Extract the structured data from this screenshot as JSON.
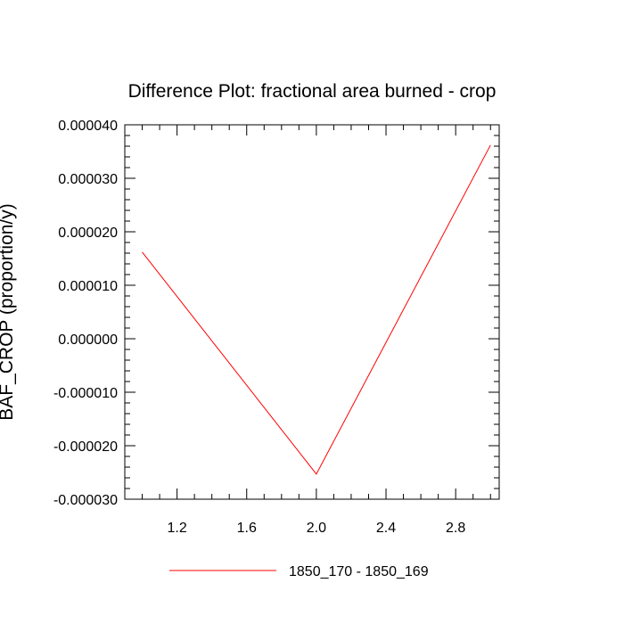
{
  "chart_data": {
    "type": "line",
    "title": "Difference Plot: fractional area burned - crop",
    "xlabel": "",
    "ylabel": "BAF_CROP  (proportion/y)",
    "xlim": [
      0.9,
      3.05
    ],
    "ylim": [
      -3e-05,
      4e-05
    ],
    "x_ticks": [
      1.2,
      1.6,
      2.0,
      2.4,
      2.8
    ],
    "x_tick_labels": [
      "1.2",
      "1.6",
      "2.0",
      "2.4",
      "2.8"
    ],
    "y_ticks": [
      4e-05,
      3e-05,
      2e-05,
      1e-05,
      0.0,
      -1e-05,
      -2e-05,
      -3e-05
    ],
    "y_tick_labels": [
      "0.000040",
      "0.000030",
      "0.000020",
      "0.000010",
      "0.000000",
      "-0.000010",
      "-0.000020",
      "-0.000030"
    ],
    "grid": false,
    "legend_position": "bottom",
    "series": [
      {
        "name": "1850_170 - 1850_169",
        "color": "#ff0000",
        "x": [
          1.0,
          2.0,
          3.0
        ],
        "y": [
          1.62e-05,
          -2.53e-05,
          3.62e-05
        ]
      }
    ]
  }
}
